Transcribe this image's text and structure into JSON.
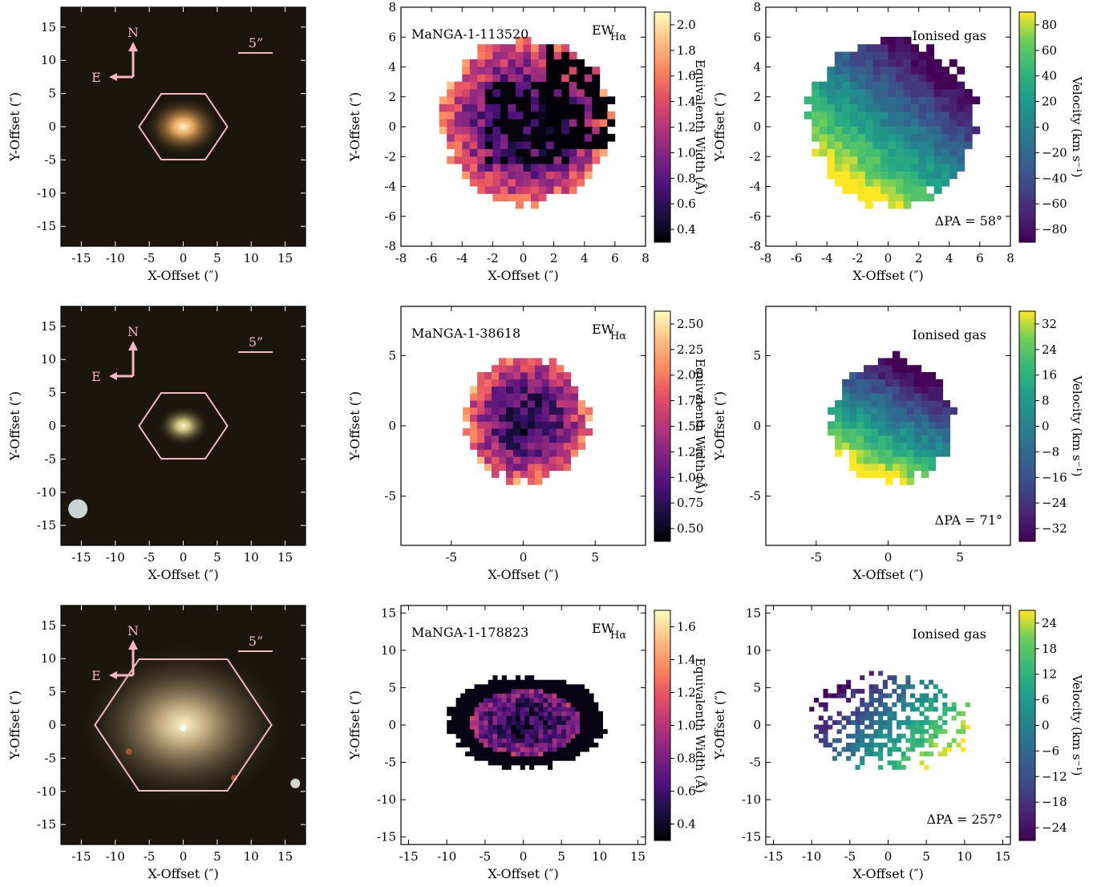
{
  "chart_data": [
    {
      "panel": "row1-image",
      "type": "image",
      "xlabel": "X-Offset (″)",
      "ylabel": "Y-Offset (″)",
      "xlim": [
        -18,
        18
      ],
      "ylim": [
        -18,
        18
      ],
      "xticks": [
        -15,
        -10,
        -5,
        0,
        5,
        10,
        15
      ],
      "yticks": [
        -15,
        -10,
        -5,
        0,
        5,
        10,
        15
      ],
      "compass": {
        "north": "N",
        "east": "E"
      },
      "scale_bar": "5”",
      "hexagon_radius": 6.5,
      "galaxy": {
        "x": 0,
        "y": 0,
        "size": 4.5,
        "color": "#e8a65c"
      }
    },
    {
      "panel": "row1-ew",
      "type": "heatmap",
      "title": "MaNGA-1-113520",
      "annotation": "EW",
      "annotation_sub": "Hα",
      "xlabel": "X-Offset (″)",
      "ylabel": "Y-Offset (″)",
      "xlim": [
        -8,
        8
      ],
      "ylim": [
        -8,
        8
      ],
      "xticks": [
        -8,
        -6,
        -4,
        -2,
        0,
        2,
        4,
        6,
        8
      ],
      "yticks": [
        -8,
        -6,
        -4,
        -2,
        0,
        2,
        4,
        6,
        8
      ],
      "colorbar": {
        "label": "Equivalenth Width (Å)",
        "cmap": "magma",
        "range": [
          0.25,
          2.1
        ],
        "ticks": [
          "0.4",
          "0.6",
          "0.8",
          "1.0",
          "1.2",
          "1.4",
          "1.6",
          "1.8",
          "2.0"
        ]
      },
      "map": {
        "cx": 0,
        "cy": 0,
        "rx": 5.5,
        "ry": 5.5,
        "pix": 0.5
      }
    },
    {
      "panel": "row1-vel",
      "type": "heatmap",
      "title": "Ionised gas",
      "annotation": "ΔPA = 58°",
      "xlabel": "X-Offset (″)",
      "ylabel": "Y-Offset (″)",
      "xlim": [
        -8,
        8
      ],
      "ylim": [
        -8,
        8
      ],
      "xticks": [
        -8,
        -6,
        -4,
        -2,
        0,
        2,
        4,
        6,
        8
      ],
      "yticks": [
        -8,
        -6,
        -4,
        -2,
        0,
        2,
        4,
        6,
        8
      ],
      "colorbar": {
        "label": "Velocity (km s⁻¹)",
        "cmap": "viridis",
        "range": [
          -90,
          90
        ],
        "ticks": [
          "−80",
          "−60",
          "−40",
          "−20",
          "0",
          "20",
          "40",
          "60",
          "80"
        ]
      },
      "map": {
        "cx": 0,
        "cy": 0,
        "rx": 5.5,
        "ry": 5.5,
        "pix": 0.5
      }
    },
    {
      "panel": "row2-image",
      "type": "image",
      "xlabel": "X-Offset (″)",
      "ylabel": "Y-Offset (″)",
      "xlim": [
        -18,
        18
      ],
      "ylim": [
        -18,
        18
      ],
      "xticks": [
        -15,
        -10,
        -5,
        0,
        5,
        10,
        15
      ],
      "yticks": [
        -15,
        -10,
        -5,
        0,
        5,
        10,
        15
      ],
      "compass": {
        "north": "N",
        "east": "E"
      },
      "scale_bar": "5”",
      "hexagon_radius": 6.5,
      "galaxy": {
        "x": 0,
        "y": 0,
        "size": 3,
        "color": "#c9c07a"
      }
    },
    {
      "panel": "row2-ew",
      "type": "heatmap",
      "title": "MaNGA-1-38618",
      "annotation": "EW",
      "annotation_sub": "Hα",
      "xlabel": "X-Offset (″)",
      "ylabel": "Y-Offset (″)",
      "xlim": [
        -8.5,
        8.5
      ],
      "ylim": [
        -8.5,
        8.5
      ],
      "xticks": [
        -5,
        0,
        5
      ],
      "yticks": [
        -5,
        0,
        5
      ],
      "colorbar": {
        "label": "Equivalenth Width (Å)",
        "cmap": "magma",
        "range": [
          0.5,
          2.6
        ],
        "ticks": [
          "0.50",
          "0.75",
          "1.00",
          "1.25",
          "1.50",
          "1.75",
          "2.00",
          "2.25",
          "2.50"
        ]
      },
      "map": {
        "cx": 0,
        "cy": 0.2,
        "rx": 4.2,
        "ry": 4.4,
        "pix": 0.5
      }
    },
    {
      "panel": "row2-vel",
      "type": "heatmap",
      "title": "Ionised gas",
      "annotation": "ΔPA = 71°",
      "xlabel": "X-Offset (″)",
      "ylabel": "Y-Offset (″)",
      "xlim": [
        -8.5,
        8.5
      ],
      "ylim": [
        -8.5,
        8.5
      ],
      "xticks": [
        -5,
        0,
        5
      ],
      "yticks": [
        -5,
        0,
        5
      ],
      "colorbar": {
        "label": "Velocity (km s⁻¹)",
        "cmap": "viridis",
        "range": [
          -40,
          40
        ],
        "ticks": [
          "−32",
          "−24",
          "−16",
          "−8",
          "0",
          "8",
          "16",
          "24",
          "32"
        ]
      },
      "map": {
        "cx": 0,
        "cy": 0.2,
        "rx": 4.2,
        "ry": 4.4,
        "pix": 0.5
      }
    },
    {
      "panel": "row3-image",
      "type": "image",
      "xlabel": "X-Offset (″)",
      "ylabel": "Y-Offset (″)",
      "xlim": [
        -18,
        18
      ],
      "ylim": [
        -18,
        18
      ],
      "xticks": [
        -15,
        -10,
        -5,
        0,
        5,
        10,
        15
      ],
      "yticks": [
        -15,
        -10,
        -5,
        0,
        5,
        10,
        15
      ],
      "compass": {
        "north": "N",
        "east": "E"
      },
      "scale_bar": "5”",
      "hexagon_radius": 13,
      "galaxy": {
        "x": 0,
        "y": 0,
        "size": 12,
        "color": "#b9a27a"
      }
    },
    {
      "panel": "row3-ew",
      "type": "heatmap",
      "title": "MaNGA-1-178823",
      "annotation": "EW",
      "annotation_sub": "Hα",
      "xlabel": "X-Offset (″)",
      "ylabel": "Y-Offset (″)",
      "xlim": [
        -16,
        16
      ],
      "ylim": [
        -16,
        16
      ],
      "xticks": [
        -15,
        -10,
        -5,
        0,
        5,
        10,
        15
      ],
      "yticks": [
        -15,
        -10,
        -5,
        0,
        5,
        10,
        15
      ],
      "colorbar": {
        "label": "Equivalenth Width (Å)",
        "cmap": "magma",
        "range": [
          0.28,
          1.7
        ],
        "ticks": [
          "0.4",
          "0.6",
          "0.8",
          "1.0",
          "1.2",
          "1.4",
          "1.6"
        ]
      },
      "map": {
        "cx": 0,
        "cy": 0,
        "rx": 10.2,
        "ry": 6.2,
        "pix": 0.6
      }
    },
    {
      "panel": "row3-vel",
      "type": "heatmap",
      "title": "Ionised gas",
      "annotation": "ΔPA = 257°",
      "xlabel": "X-Offset (″)",
      "ylabel": "Y-Offset (″)",
      "xlim": [
        -16,
        16
      ],
      "ylim": [
        -16,
        16
      ],
      "xticks": [
        -15,
        -10,
        -5,
        0,
        5,
        10,
        15
      ],
      "yticks": [
        -15,
        -10,
        -5,
        0,
        5,
        10,
        15
      ],
      "colorbar": {
        "label": "Velocity (km s⁻¹)",
        "cmap": "viridis",
        "range": [
          -30,
          30
        ],
        "ticks": [
          "−24",
          "−18",
          "−12",
          "−6",
          "0",
          "6",
          "12",
          "18",
          "24"
        ]
      },
      "map": {
        "cx": 0,
        "cy": 0,
        "rx": 10.5,
        "ry": 6.8,
        "pix": 0.6,
        "sparse": true
      }
    }
  ]
}
